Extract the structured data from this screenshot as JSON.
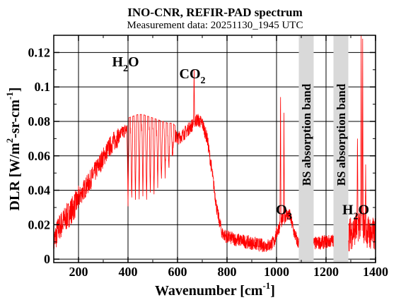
{
  "chart_data": {
    "type": "line",
    "title": "INO-CNR, REFIR-PAD spectrum",
    "subtitle": "Measurement data: 20251130_1945 UTC",
    "xlabel": "Wavenumber [cm-1]",
    "xlabel_main": "Wavenumber [cm",
    "xlabel_sup": "-1",
    "xlabel_end": "]",
    "ylabel": "DLR [W/m2-sr-cm-1]",
    "ylabel_main": "DLR [W/m",
    "ylabel_sup1": "2",
    "ylabel_mid": "-sr-cm",
    "ylabel_sup2": "-1",
    "ylabel_end": "]",
    "xlim": [
      100,
      1400
    ],
    "ylim": [
      -0.002,
      0.13
    ],
    "xticks": [
      200,
      400,
      600,
      800,
      1000,
      1200,
      1400
    ],
    "xtick_labels": [
      "200",
      "400",
      "600",
      "800",
      "1000",
      "1200",
      "1400"
    ],
    "yticks": [
      0,
      0.02,
      0.04,
      0.06,
      0.08,
      0.1,
      0.12
    ],
    "ytick_labels": [
      "0",
      "0.02",
      "0.04",
      "0.06",
      "0.08",
      "0.1",
      "0.12"
    ],
    "grid": true,
    "line_color": "#ff0000",
    "band_color": "#d9d9d9",
    "series": [
      {
        "values": [
          [
            100,
            0.01
          ],
          [
            120,
            0.018
          ],
          [
            140,
            0.022
          ],
          [
            160,
            0.026
          ],
          [
            180,
            0.03
          ],
          [
            200,
            0.035
          ],
          [
            220,
            0.04
          ],
          [
            240,
            0.044
          ],
          [
            260,
            0.049
          ],
          [
            280,
            0.054
          ],
          [
            300,
            0.059
          ],
          [
            320,
            0.064
          ],
          [
            340,
            0.068
          ],
          [
            360,
            0.071
          ],
          [
            380,
            0.074
          ],
          [
            400,
            0.076
          ],
          [
            420,
            0.077
          ],
          [
            440,
            0.078
          ],
          [
            460,
            0.078
          ],
          [
            480,
            0.077
          ],
          [
            500,
            0.076
          ],
          [
            520,
            0.075
          ],
          [
            540,
            0.074
          ],
          [
            560,
            0.073
          ],
          [
            580,
            0.073
          ],
          [
            600,
            0.07
          ],
          [
            620,
            0.072
          ],
          [
            640,
            0.075
          ],
          [
            660,
            0.078
          ],
          [
            670,
            0.08
          ],
          [
            680,
            0.081
          ],
          [
            700,
            0.079
          ],
          [
            720,
            0.07
          ],
          [
            740,
            0.05
          ],
          [
            760,
            0.028
          ],
          [
            780,
            0.015
          ],
          [
            800,
            0.013
          ],
          [
            820,
            0.012
          ],
          [
            850,
            0.011
          ],
          [
            880,
            0.01
          ],
          [
            910,
            0.009
          ],
          [
            940,
            0.008
          ],
          [
            970,
            0.008
          ],
          [
            990,
            0.01
          ],
          [
            1000,
            0.015
          ],
          [
            1020,
            0.022
          ],
          [
            1040,
            0.026
          ],
          [
            1055,
            0.025
          ],
          [
            1070,
            0.016
          ],
          [
            1085,
            0.01
          ],
          [
            1150,
            0.009
          ],
          [
            1200,
            0.01
          ],
          [
            1240,
            0.011
          ],
          [
            1300,
            0.015
          ],
          [
            1320,
            0.018
          ],
          [
            1340,
            0.022
          ],
          [
            1360,
            0.017
          ],
          [
            1380,
            0.015
          ],
          [
            1400,
            0.014
          ]
        ]
      }
    ],
    "absorption_features": [
      {
        "x": 400,
        "depth": 0.75
      },
      {
        "x": 415,
        "depth": 0.7
      },
      {
        "x": 430,
        "depth": 0.72
      },
      {
        "x": 445,
        "depth": 0.7
      },
      {
        "x": 460,
        "depth": 0.68
      },
      {
        "x": 475,
        "depth": 0.7
      },
      {
        "x": 490,
        "depth": 0.66
      },
      {
        "x": 505,
        "depth": 0.65
      },
      {
        "x": 520,
        "depth": 0.6
      },
      {
        "x": 535,
        "depth": 0.55
      },
      {
        "x": 550,
        "depth": 0.5
      },
      {
        "x": 565,
        "depth": 0.45
      },
      {
        "x": 580,
        "depth": 0.35
      }
    ],
    "spikes": [
      {
        "x": 667,
        "y": 0.11
      },
      {
        "x": 1016,
        "y": 0.102
      },
      {
        "x": 1030,
        "y": 0.085
      },
      {
        "x": 1342,
        "y": 0.13
      },
      {
        "x": 1348,
        "y": 0.128
      },
      {
        "x": 1327,
        "y": 0.07
      },
      {
        "x": 1360,
        "y": 0.055
      }
    ],
    "bands": [
      {
        "label": "BS absorption band",
        "x0": 1090,
        "x1": 1150
      },
      {
        "label": "BS absorption band",
        "x0": 1230,
        "x1": 1290
      }
    ],
    "annotations": [
      {
        "main": "H",
        "sub": "2",
        "tail": "O",
        "x": 390,
        "y": 0.112
      },
      {
        "main": "CO",
        "sub": "2",
        "tail": "",
        "x": 660,
        "y": 0.105
      },
      {
        "main": "O",
        "sub": "3",
        "tail": "",
        "x": 1030,
        "y": 0.026
      },
      {
        "main": "H",
        "sub": "2",
        "tail": "O",
        "x": 1320,
        "y": 0.026
      }
    ]
  }
}
